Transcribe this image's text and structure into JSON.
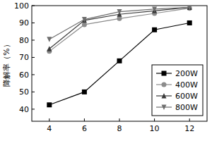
{
  "chart_data": {
    "type": "line",
    "y_label": "降解率（%）",
    "x": [
      4,
      6,
      8,
      10,
      12
    ],
    "xlim": [
      3,
      13
    ],
    "xticks": [
      4,
      6,
      8,
      10,
      12
    ],
    "ylim": [
      33,
      100
    ],
    "yticks": [
      40,
      50,
      60,
      70,
      80,
      90,
      100
    ],
    "legend": "lower right",
    "grid": false,
    "series": [
      {
        "name": "200W",
        "color": "#000000",
        "marker": "square",
        "line_style": "solid",
        "values": [
          42.5,
          50,
          68,
          86,
          90
        ]
      },
      {
        "name": "400W",
        "color": "#8c8c8c",
        "marker": "circle",
        "line_style": "solid",
        "values": [
          73.5,
          89,
          92.5,
          95.5,
          98.5
        ]
      },
      {
        "name": "600W",
        "color": "#3a3a3a",
        "marker": "triangle",
        "line_style": "solid",
        "values": [
          75,
          91.5,
          95,
          97,
          99
        ]
      },
      {
        "name": "800W",
        "color": "#6e6e6e",
        "marker": "triangle-down",
        "line_style": "solid",
        "values": [
          80.5,
          92,
          96.5,
          98,
          99
        ]
      }
    ]
  }
}
